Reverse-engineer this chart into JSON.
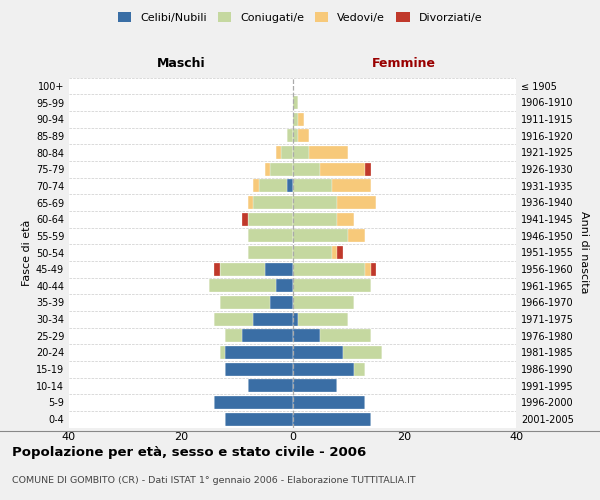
{
  "age_groups": [
    "0-4",
    "5-9",
    "10-14",
    "15-19",
    "20-24",
    "25-29",
    "30-34",
    "35-39",
    "40-44",
    "45-49",
    "50-54",
    "55-59",
    "60-64",
    "65-69",
    "70-74",
    "75-79",
    "80-84",
    "85-89",
    "90-94",
    "95-99",
    "100+"
  ],
  "birth_years": [
    "2001-2005",
    "1996-2000",
    "1991-1995",
    "1986-1990",
    "1981-1985",
    "1976-1980",
    "1971-1975",
    "1966-1970",
    "1961-1965",
    "1956-1960",
    "1951-1955",
    "1946-1950",
    "1941-1945",
    "1936-1940",
    "1931-1935",
    "1926-1930",
    "1921-1925",
    "1916-1920",
    "1911-1915",
    "1906-1910",
    "≤ 1905"
  ],
  "males": {
    "celibi": [
      12,
      14,
      8,
      12,
      12,
      9,
      7,
      4,
      3,
      5,
      0,
      0,
      0,
      0,
      1,
      0,
      0,
      0,
      0,
      0,
      0
    ],
    "coniugati": [
      0,
      0,
      0,
      0,
      1,
      3,
      7,
      9,
      12,
      8,
      8,
      8,
      8,
      7,
      5,
      4,
      2,
      1,
      0,
      0,
      0
    ],
    "vedovi": [
      0,
      0,
      0,
      0,
      0,
      0,
      0,
      0,
      0,
      0,
      0,
      0,
      0,
      1,
      1,
      1,
      1,
      0,
      0,
      0,
      0
    ],
    "divorziati": [
      0,
      0,
      0,
      0,
      0,
      0,
      0,
      0,
      0,
      1,
      0,
      0,
      1,
      0,
      0,
      0,
      0,
      0,
      0,
      0,
      0
    ]
  },
  "females": {
    "nubili": [
      14,
      13,
      8,
      11,
      9,
      5,
      1,
      0,
      0,
      0,
      0,
      0,
      0,
      0,
      0,
      0,
      0,
      0,
      0,
      0,
      0
    ],
    "coniugate": [
      0,
      0,
      0,
      2,
      7,
      9,
      9,
      11,
      14,
      13,
      7,
      10,
      8,
      8,
      7,
      5,
      3,
      1,
      1,
      1,
      0
    ],
    "vedove": [
      0,
      0,
      0,
      0,
      0,
      0,
      0,
      0,
      0,
      1,
      1,
      3,
      3,
      7,
      7,
      8,
      7,
      2,
      1,
      0,
      0
    ],
    "divorziate": [
      0,
      0,
      0,
      0,
      0,
      0,
      0,
      0,
      0,
      1,
      1,
      0,
      0,
      0,
      0,
      1,
      0,
      0,
      0,
      0,
      0
    ]
  },
  "colors": {
    "celibi": "#3A6EA5",
    "coniugati": "#C5D8A0",
    "vedovi": "#F7C97A",
    "divorziati": "#C0392B"
  },
  "xlim": 40,
  "title": "Popolazione per età, sesso e stato civile - 2006",
  "subtitle": "COMUNE DI GOMBITO (CR) - Dati ISTAT 1° gennaio 2006 - Elaborazione TUTTITALIA.IT",
  "ylabel_left": "Fasce di età",
  "ylabel_right": "Anni di nascita",
  "xlabel_left": "Maschi",
  "xlabel_right": "Femmine",
  "femmine_color": "#990000",
  "bg_color": "#f0f0f0",
  "plot_bg": "#ffffff"
}
